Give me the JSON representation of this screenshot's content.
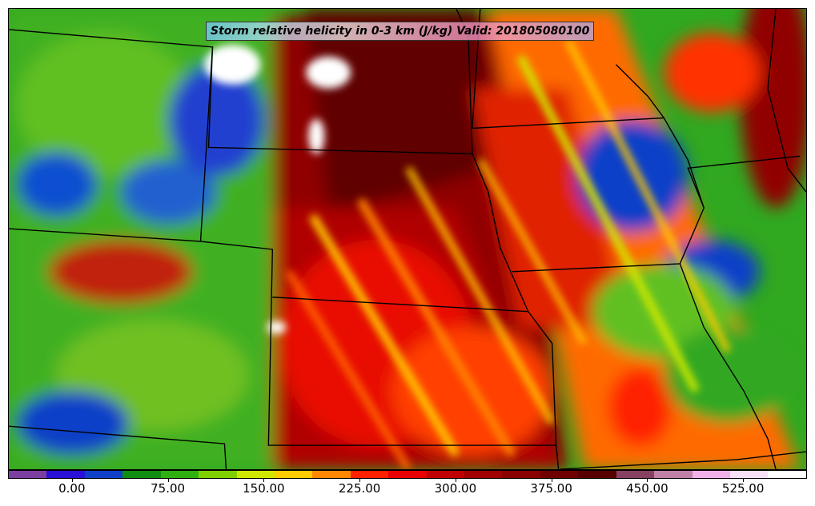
{
  "title": "Storm relative helicity in 0-3 km (J/kg) Valid: 201805080100",
  "colorbar": {
    "colors": [
      "#7b3fa0",
      "#2a10d8",
      "#1040c8",
      "#108c10",
      "#30b010",
      "#80d000",
      "#d0e800",
      "#ffcc00",
      "#ff8800",
      "#ff2000",
      "#e80000",
      "#c00000",
      "#a00000",
      "#880000",
      "#700000",
      "#580000",
      "#884060",
      "#c080a8",
      "#f0b0e8",
      "#f8e0f8",
      "#ffffff"
    ],
    "tick_labels": [
      "0.00",
      "75.00",
      "150.00",
      "225.00",
      "300.00",
      "375.00",
      "450.00",
      "525.00"
    ],
    "tick_values": [
      0,
      75,
      150,
      225,
      300,
      375,
      450,
      525
    ],
    "min": -50,
    "max": 575
  }
}
